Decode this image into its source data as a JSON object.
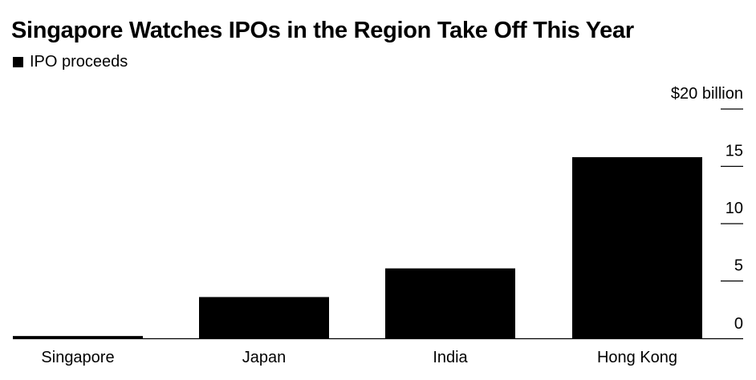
{
  "chart_data": {
    "type": "bar",
    "title": "Singapore Watches IPOs in the Region Take Off This Year",
    "legend": [
      "IPO proceeds"
    ],
    "categories": [
      "Singapore",
      "Japan",
      "India",
      "Hong Kong"
    ],
    "series": [
      {
        "name": "IPO proceeds",
        "values": [
          0.2,
          3.6,
          6.1,
          15.8
        ],
        "color": "#000000"
      }
    ],
    "y_ticks": [
      0,
      5,
      10,
      15,
      20
    ],
    "y_tick_labels": [
      "0",
      "5",
      "10",
      "15",
      "$20 billion"
    ],
    "ylim": [
      0,
      20
    ],
    "y_axis_side": "right",
    "grid": false
  }
}
